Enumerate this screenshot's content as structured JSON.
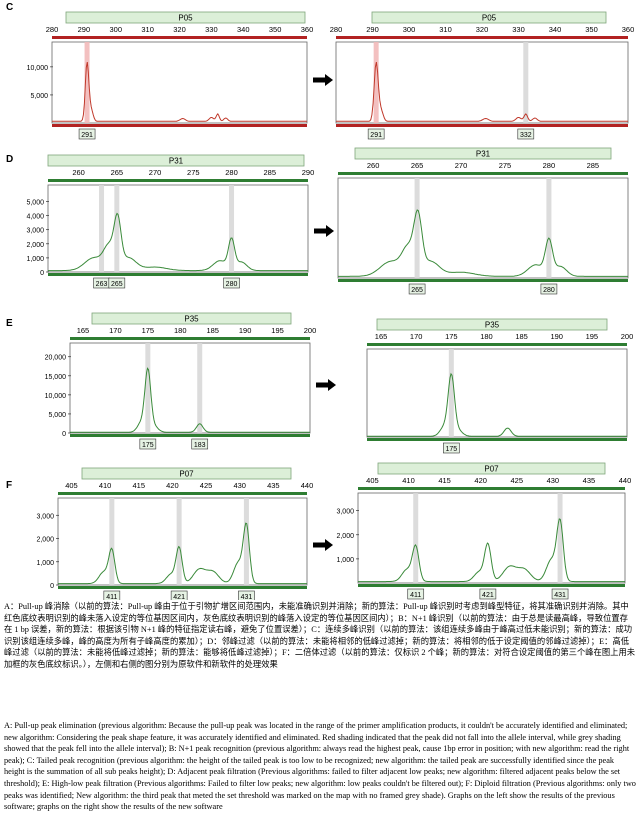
{
  "chart_data": [
    {
      "type": "line",
      "section_label": "C",
      "panels": [
        {
          "side": "left",
          "marker": "P05",
          "x_ticks": [
            280,
            290,
            300,
            310,
            320,
            330,
            340,
            350,
            360
          ],
          "xlim": [
            280,
            360
          ],
          "y_ticks": [
            "10,000",
            "5,000"
          ],
          "ylim": [
            0,
            13000
          ],
          "peaks": [
            {
              "x": 291,
              "h": 10400,
              "w": 0.55
            },
            {
              "x": 292.3,
              "h": 2000,
              "w": 0.6
            },
            {
              "x": 321,
              "h": 500,
              "w": 0.8
            },
            {
              "x": 330,
              "h": 700,
              "w": 0.7
            },
            {
              "x": 332,
              "h": 1300,
              "w": 0.5
            },
            {
              "x": 334.5,
              "h": 600,
              "w": 0.6
            }
          ],
          "baseline": 300,
          "bins": [
            {
              "x": 291,
              "fill": "red"
            }
          ],
          "allele_labels": [
            {
              "x": 291,
              "text": "291"
            }
          ]
        },
        {
          "side": "right",
          "marker": "P05",
          "x_ticks": [
            280,
            290,
            300,
            310,
            320,
            330,
            340,
            350,
            360
          ],
          "xlim": [
            280,
            360
          ],
          "y_ticks": [],
          "ylim": [
            0,
            13000
          ],
          "peaks": [
            {
              "x": 291,
              "h": 10400,
              "w": 0.55
            },
            {
              "x": 292.3,
              "h": 2000,
              "w": 0.6
            },
            {
              "x": 321,
              "h": 500,
              "w": 0.8
            },
            {
              "x": 330,
              "h": 700,
              "w": 0.7
            },
            {
              "x": 332,
              "h": 1300,
              "w": 0.5
            },
            {
              "x": 334.5,
              "h": 600,
              "w": 0.6
            }
          ],
          "baseline": 300,
          "bins": [
            {
              "x": 291,
              "fill": "red"
            },
            {
              "x": 332,
              "fill": "grey"
            }
          ],
          "allele_labels": [
            {
              "x": 291,
              "text": "291"
            },
            {
              "x": 332,
              "text": "332"
            }
          ]
        }
      ]
    },
    {
      "type": "line",
      "section_label": "D",
      "panels": [
        {
          "side": "left",
          "marker": "P31",
          "x_ticks": [
            260,
            265,
            270,
            275,
            280,
            285,
            290
          ],
          "xlim": [
            256,
            290
          ],
          "y_ticks": [
            "5,000",
            "4,000",
            "3,000",
            "2,000",
            "1,000",
            "0"
          ],
          "ylim": [
            0,
            5600
          ],
          "peaks": [
            {
              "x": 262,
              "h": 900,
              "w": 1.2
            },
            {
              "x": 264,
              "h": 1600,
              "w": 0.7
            },
            {
              "x": 265.1,
              "h": 3200,
              "w": 0.45
            },
            {
              "x": 266.5,
              "h": 900,
              "w": 1.0
            },
            {
              "x": 270,
              "h": 250,
              "w": 1.5
            },
            {
              "x": 278.5,
              "h": 700,
              "w": 0.9
            },
            {
              "x": 280,
              "h": 2050,
              "w": 0.4
            },
            {
              "x": 281.3,
              "h": 600,
              "w": 0.7
            }
          ],
          "baseline": 100,
          "bins": [
            {
              "x": 263,
              "fill": "grey"
            },
            {
              "x": 265,
              "fill": "grey"
            },
            {
              "x": 280,
              "fill": "grey"
            }
          ],
          "allele_labels": [
            {
              "x": 263,
              "text": "263"
            },
            {
              "x": 265,
              "text": "265"
            },
            {
              "x": 280,
              "text": "280"
            }
          ]
        },
        {
          "side": "right",
          "marker": "P31",
          "x_ticks": [
            260,
            265,
            270,
            275,
            280,
            285
          ],
          "xlim": [
            256,
            289
          ],
          "y_ticks": [],
          "ylim": [
            0,
            5600
          ],
          "peaks": [
            {
              "x": 262,
              "h": 900,
              "w": 1.2
            },
            {
              "x": 264,
              "h": 1600,
              "w": 0.7
            },
            {
              "x": 265.1,
              "h": 3200,
              "w": 0.45
            },
            {
              "x": 266.5,
              "h": 900,
              "w": 1.0
            },
            {
              "x": 270,
              "h": 250,
              "w": 1.5
            },
            {
              "x": 278.5,
              "h": 700,
              "w": 0.9
            },
            {
              "x": 280,
              "h": 2050,
              "w": 0.4
            },
            {
              "x": 281.3,
              "h": 600,
              "w": 0.7
            }
          ],
          "baseline": 100,
          "bins": [
            {
              "x": 265,
              "fill": "grey"
            },
            {
              "x": 280,
              "fill": "grey"
            }
          ],
          "allele_labels": [
            {
              "x": 265,
              "text": "265"
            },
            {
              "x": 280,
              "text": "280"
            }
          ]
        }
      ]
    },
    {
      "type": "line",
      "section_label": "E",
      "panels": [
        {
          "side": "left",
          "marker": "P35",
          "x_ticks": [
            165,
            170,
            175,
            180,
            185,
            190,
            195,
            200
          ],
          "xlim": [
            163,
            200
          ],
          "y_ticks": [
            "20,000",
            "15,000",
            "10,000",
            "5,000",
            "0"
          ],
          "ylim": [
            0,
            21500
          ],
          "peaks": [
            {
              "x": 174,
              "h": 2500,
              "w": 0.6
            },
            {
              "x": 175,
              "h": 15800,
              "w": 0.45
            },
            {
              "x": 176,
              "h": 1500,
              "w": 0.6
            },
            {
              "x": 183,
              "h": 2200,
              "w": 0.5
            }
          ],
          "baseline": 200,
          "bins": [
            {
              "x": 175,
              "fill": "grey"
            },
            {
              "x": 183,
              "fill": "grey"
            }
          ],
          "allele_labels": [
            {
              "x": 175,
              "text": "175"
            },
            {
              "x": 183,
              "text": "183"
            }
          ]
        },
        {
          "side": "right",
          "marker": "P35",
          "x_ticks": [
            165,
            170,
            175,
            180,
            185,
            190,
            195,
            200
          ],
          "xlim": [
            163,
            200
          ],
          "y_ticks": [],
          "ylim": [
            0,
            21500
          ],
          "peaks": [
            {
              "x": 174,
              "h": 2500,
              "w": 0.6
            },
            {
              "x": 175,
              "h": 15800,
              "w": 0.45
            },
            {
              "x": 176,
              "h": 1500,
              "w": 0.6
            },
            {
              "x": 183,
              "h": 2200,
              "w": 0.5
            }
          ],
          "baseline": 200,
          "bins": [
            {
              "x": 175,
              "fill": "grey"
            }
          ],
          "allele_labels": [
            {
              "x": 175,
              "text": "175"
            }
          ]
        }
      ]
    },
    {
      "type": "line",
      "section_label": "F",
      "panels": [
        {
          "side": "left",
          "marker": "P07",
          "x_ticks": [
            405,
            410,
            415,
            420,
            425,
            430,
            435,
            440
          ],
          "xlim": [
            403,
            440
          ],
          "y_ticks": [
            "3,000",
            "2,000",
            "1,000",
            "0"
          ],
          "ylim": [
            0,
            3400
          ],
          "peaks": [
            {
              "x": 409.8,
              "h": 500,
              "w": 0.7
            },
            {
              "x": 411,
              "h": 1400,
              "w": 0.45
            },
            {
              "x": 419.8,
              "h": 400,
              "w": 0.7
            },
            {
              "x": 421,
              "h": 1500,
              "w": 0.45
            },
            {
              "x": 424,
              "h": 600,
              "w": 0.9
            },
            {
              "x": 426,
              "h": 500,
              "w": 0.9
            },
            {
              "x": 429.8,
              "h": 900,
              "w": 0.7
            },
            {
              "x": 431,
              "h": 2400,
              "w": 0.45
            }
          ],
          "baseline": 60,
          "bins": [
            {
              "x": 411,
              "fill": "grey"
            },
            {
              "x": 421,
              "fill": "grey"
            },
            {
              "x": 431,
              "fill": "grey"
            }
          ],
          "allele_labels": [
            {
              "x": 411,
              "text": "411"
            },
            {
              "x": 421,
              "text": "421"
            },
            {
              "x": 431,
              "text": "431"
            }
          ]
        },
        {
          "side": "right",
          "marker": "P07",
          "x_ticks": [
            405,
            410,
            415,
            420,
            425,
            430,
            435,
            440
          ],
          "xlim": [
            403,
            440
          ],
          "y_ticks": [
            "3,000",
            "2,000",
            "1,000"
          ],
          "ylim": [
            0,
            3400
          ],
          "peaks": [
            {
              "x": 409.8,
              "h": 500,
              "w": 0.7
            },
            {
              "x": 411,
              "h": 1400,
              "w": 0.45
            },
            {
              "x": 419.8,
              "h": 400,
              "w": 0.7
            },
            {
              "x": 421,
              "h": 1500,
              "w": 0.45
            },
            {
              "x": 424,
              "h": 600,
              "w": 0.9
            },
            {
              "x": 426,
              "h": 500,
              "w": 0.9
            },
            {
              "x": 429.8,
              "h": 900,
              "w": 0.7
            },
            {
              "x": 431,
              "h": 2400,
              "w": 0.45
            }
          ],
          "baseline": 60,
          "bins": [
            {
              "x": 411,
              "fill": "grey"
            },
            {
              "x": 431,
              "fill": "grey"
            }
          ],
          "allele_labels": [
            {
              "x": 411,
              "text": "411"
            },
            {
              "x": 421,
              "text": "421"
            },
            {
              "x": 431,
              "text": "431"
            }
          ]
        }
      ]
    }
  ],
  "colors": {
    "trace_red": "#c0392b",
    "trace_green": "#3a8a3a",
    "header_fill": "#dcefd8",
    "header_stroke": "#7fa57a",
    "bin_grey": "#d8d8d8",
    "bin_red": "#f2b9b9",
    "tick_bar_red": "#b22222",
    "tick_bar_green": "#2e7d32",
    "label_fill": "#e6f2e4"
  },
  "caption": {
    "zh": "A：Pull-up 峰消除（以前的算法：Pull-up 峰由于位于引物扩增区间范围内，未能准确识别并消除；新的算法：Pull-up 峰识别时考虑到峰型特征，将其准确识别并消除。其中红色底纹表明识别的峰未落入设定的等位基因区间内，灰色底纹表明识别的峰落入设定的等位基因区间内）；B：N+1 峰识别（以前的算法：由于总是读最高峰，导致位置存在 1 bp 误差，新的算法：根据该引物 N+1 峰的特征指定读右峰，避免了位置误差）；C：连续多峰识别（以前的算法：该组连续多峰由于峰高过低未能识别；新的算法：成功识别该组连续多峰，峰的高度为所有子峰高度的累加）；D：邻峰过滤（以前的算法：未能将相邻的低峰过滤掉；新的算法：将相邻的低于设定阈值的邻峰过滤掉）；E：高低峰过滤（以前的算法：未能将低峰过滤掉；新的算法：能够将低峰过滤掉）；F：二倍体过滤（以前的算法：仅标识 2 个峰；新的算法：对符合设定阈值的第三个峰在图上用未加框的灰色底纹标识。），左侧和右侧的图分别为原软件和新软件的处理效果",
    "en": "A: Pull-up peak elimination (previous algorithm: Because the pull-up peak was located in the range of the primer amplification products, it couldn't be accurately identified and eliminated; new algorithm: Considering the peak shape feature, it was accurately identified and eliminated. Red shading indicated that the peak did not fall into the allele interval, while grey shading showed that the peak fell into the allele interval); B: N+1 peak recognition (previous algorithm: always read the highest peak, cause 1bp error in position; with new algorithm: read the right peak); C: Tailed peak recognition (previous algorithm: the height of the tailed peak is too low to be recognized; new algorithm: the tailed peak are successfully identified since the peak height is the summation of all sub peaks height); D: Adjacent peak filtration (Previous algorithms: failed to filter adjacent low peaks; new algorithm: filtered adjacent peaks below the set threshold); E: High-low peak filtration (Previous algorithms: Failed to filter low peaks; new algorithm: low peaks couldn't be filtered out); F: Diploid filtration (Previous algorithms: only two peaks was identified; New algorithm: the third peak that meted the set threshold was marked on the map with no framed grey shade). Graphs on the left show the results of the previous software; graphs on the right show the results of the new software"
  }
}
